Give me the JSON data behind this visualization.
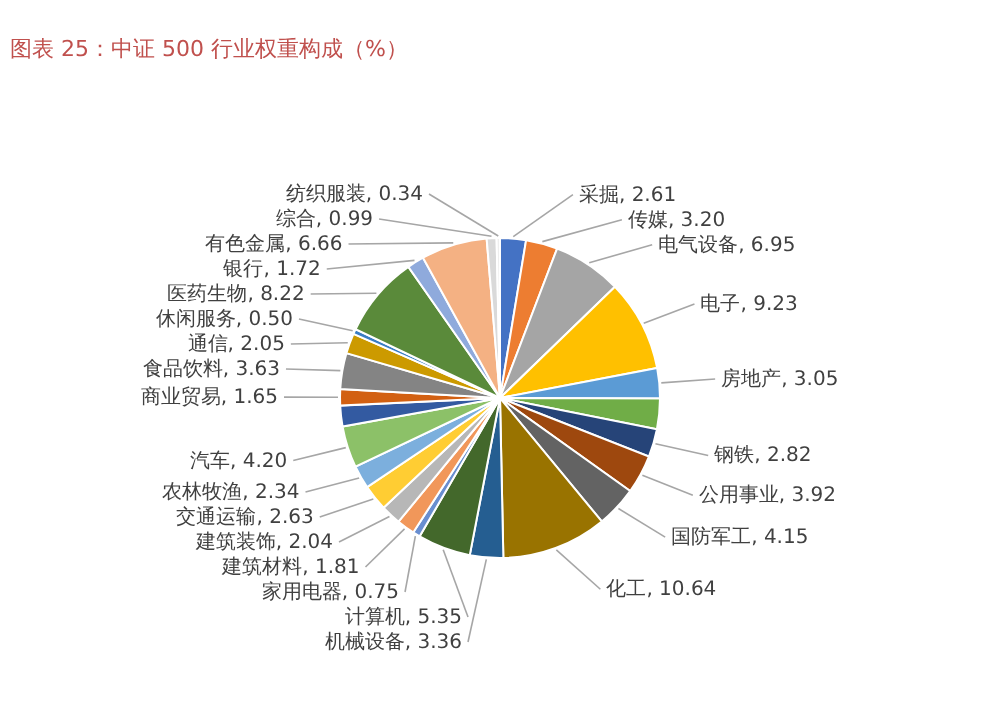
{
  "chart_data": {
    "type": "pie",
    "title": "图表 25：中证 500 行业权重构成（%）",
    "categories": [
      "采掘",
      "传媒",
      "电气设备",
      "电子",
      "房地产",
      null,
      "钢铁",
      "公用事业",
      "国防军工",
      "化工",
      "机械设备",
      "计算机",
      "家用电器",
      "建筑材料",
      "建筑装饰",
      "交通运输",
      "农林牧渔",
      "汽车",
      null,
      "商业贸易",
      "食品饮料",
      "通信",
      "休闲服务",
      "医药生物",
      "银行",
      "有色金属",
      "综合",
      "纺织服装"
    ],
    "values": [
      2.61,
      3.2,
      6.95,
      9.23,
      3.05,
      3.1,
      2.82,
      3.92,
      4.15,
      10.64,
      3.36,
      5.35,
      0.75,
      1.81,
      2.04,
      2.63,
      2.34,
      4.2,
      2.1,
      1.65,
      3.63,
      2.05,
      0.5,
      8.22,
      1.72,
      6.66,
      0.99,
      0.34
    ],
    "value_labels": [
      "2.61",
      "3.20",
      "6.95",
      "9.23",
      "3.05",
      null,
      "2.82",
      "3.92",
      "4.15",
      "10.64",
      "3.36",
      "5.35",
      "0.75",
      "1.81",
      "2.04",
      "2.63",
      "2.34",
      "4.20",
      null,
      "1.65",
      "3.63",
      "2.05",
      "0.50",
      "8.22",
      "1.72",
      "6.66",
      "0.99",
      "0.34"
    ],
    "colors": [
      "#4472c4",
      "#ed7d31",
      "#a5a5a5",
      "#ffc000",
      "#5b9bd5",
      "#70ad47",
      "#264478",
      "#9e480e",
      "#636363",
      "#997300",
      "#255e91",
      "#43682b",
      "#698ed0",
      "#f1975a",
      "#b7b7b7",
      "#ffcd33",
      "#7cafdd",
      "#8cc168",
      "#335aa1",
      "#d26012",
      "#848484",
      "#cc9a00",
      "#3a7dc4",
      "#5a8a3a",
      "#8faadc",
      "#f4b183",
      "#d9d9d9",
      "#eeeeee"
    ]
  }
}
